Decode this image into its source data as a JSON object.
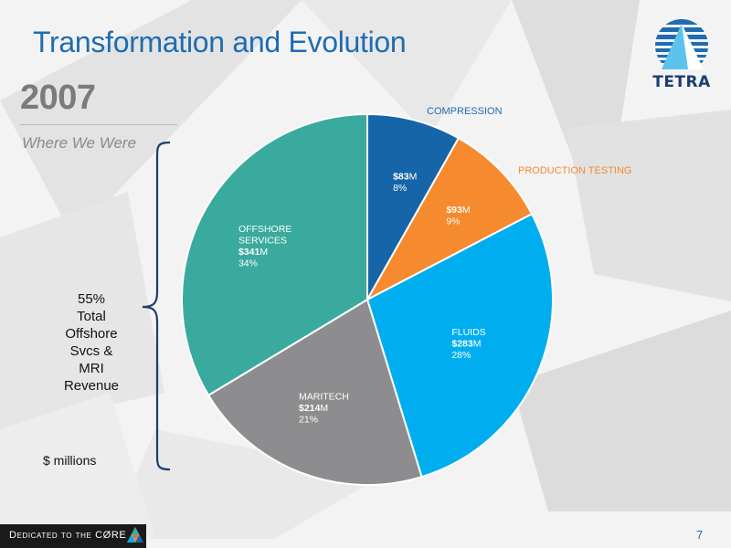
{
  "header": {
    "title": "Transformation and Evolution",
    "year": "2007",
    "subtitle": "Where We Were"
  },
  "logo": {
    "text": "TETRA",
    "icon": "tetra-triangle-logo",
    "color": "#1c3e6e"
  },
  "bracket_note": [
    "55%",
    "Total",
    "Offshore",
    "Svcs &",
    "MRI",
    "Revenue"
  ],
  "units_note": "$ millions",
  "footer": {
    "tagline": "Dedicated to the CØRE",
    "page_number": "7"
  },
  "chart_data": {
    "type": "pie",
    "title": "",
    "units": "$ millions",
    "slices": [
      {
        "name": "COMPRESSION",
        "label_lines": [],
        "value_text": "$83",
        "value_suffix": "M",
        "value": 83,
        "percent_text": "8%",
        "color": "#1565a8",
        "label_color": "#ffffff",
        "outside_label": "COMPRESSION",
        "outside_color": "#1f6cb0"
      },
      {
        "name": "PRODUCTION TESTING",
        "label_lines": [],
        "value_text": "$93",
        "value_suffix": "M",
        "value": 93,
        "percent_text": "9%",
        "color": "#f58a2e",
        "label_color": "#ffffff",
        "outside_label": "PRODUCTION TESTING",
        "outside_color": "#f58a2e"
      },
      {
        "name": "FLUIDS",
        "label_lines": [
          "FLUIDS"
        ],
        "value_text": "$283",
        "value_suffix": "M",
        "value": 283,
        "percent_text": "28%",
        "color": "#00aeef",
        "label_color": "#ffffff"
      },
      {
        "name": "MARITECH",
        "label_lines": [
          "MARITECH"
        ],
        "value_text": "$214",
        "value_suffix": "M",
        "value": 214,
        "percent_text": "21%",
        "color": "#8d8d8f",
        "label_color": "#ffffff"
      },
      {
        "name": "OFFSHORE SERVICES",
        "label_lines": [
          "OFFSHORE",
          "SERVICES"
        ],
        "value_text": "$341",
        "value_suffix": "M",
        "value": 341,
        "percent_text": "34%",
        "color": "#3aaa9e",
        "label_color": "#ffffff"
      }
    ]
  }
}
